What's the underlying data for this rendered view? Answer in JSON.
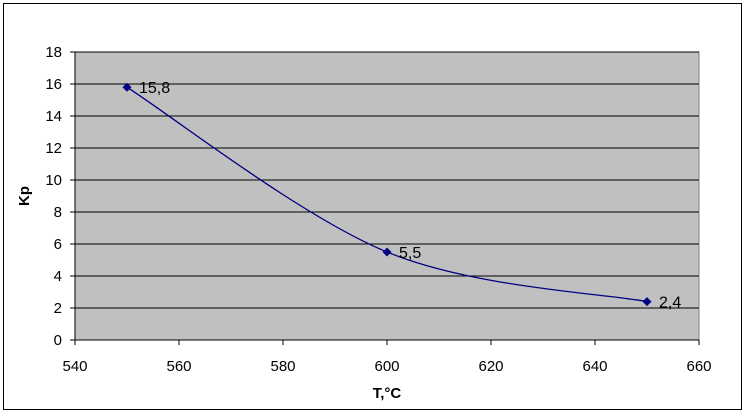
{
  "chart_data": {
    "type": "line",
    "title": "",
    "xlabel": "T,°C",
    "ylabel": "Kp",
    "xlim": [
      540,
      660
    ],
    "ylim": [
      0,
      18
    ],
    "x_ticks": [
      540,
      560,
      580,
      600,
      620,
      640,
      660
    ],
    "x_tick_labels": [
      "540",
      "560",
      "580",
      "600",
      "620",
      "640",
      "660"
    ],
    "y_ticks": [
      0,
      2,
      4,
      6,
      8,
      10,
      12,
      14,
      16,
      18
    ],
    "y_tick_labels": [
      "0",
      "2",
      "4",
      "6",
      "8",
      "10",
      "12",
      "14",
      "16",
      "18"
    ],
    "grid": "horizontal",
    "legend": "none",
    "plot_background": "#c0c0c0",
    "series": [
      {
        "x": [
          550,
          600,
          650
        ],
        "y": [
          15.8,
          5.5,
          2.4
        ],
        "data_labels": [
          "15,8",
          "5,5",
          "2,4"
        ],
        "color": "#000080",
        "marker": "diamond",
        "smooth": true
      }
    ]
  }
}
